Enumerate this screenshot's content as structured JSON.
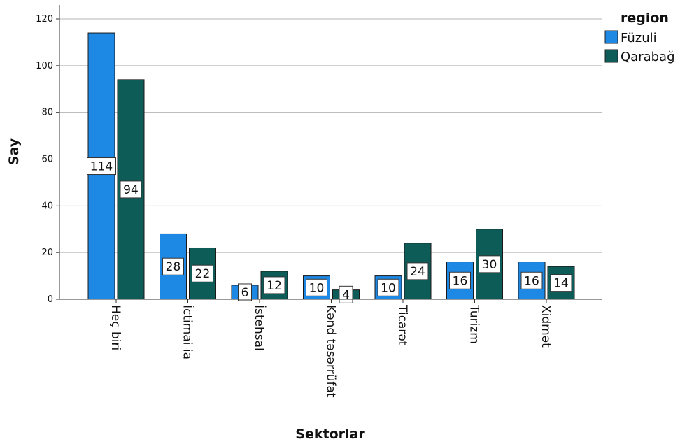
{
  "chart_data": {
    "type": "bar",
    "title": "",
    "xlabel": "Sektorlar",
    "ylabel": "Say",
    "ylim": [
      0,
      120
    ],
    "yticks": [
      0,
      20,
      40,
      60,
      80,
      100,
      120
    ],
    "grid": true,
    "legend": {
      "title": "region",
      "placement": "top-right"
    },
    "categories": [
      "Heç biri",
      "İctimai ia",
      "İstehsal",
      "Kənd təsərrüfat",
      "Ticarət",
      "Turizm",
      "Xidmət"
    ],
    "series": [
      {
        "name": "Füzuli",
        "color": "#1e88e5",
        "values": [
          114,
          28,
          6,
          10,
          10,
          16,
          16
        ]
      },
      {
        "name": "Qarabağ",
        "color": "#0d5c58",
        "values": [
          94,
          22,
          12,
          4,
          24,
          30,
          14
        ]
      }
    ]
  }
}
